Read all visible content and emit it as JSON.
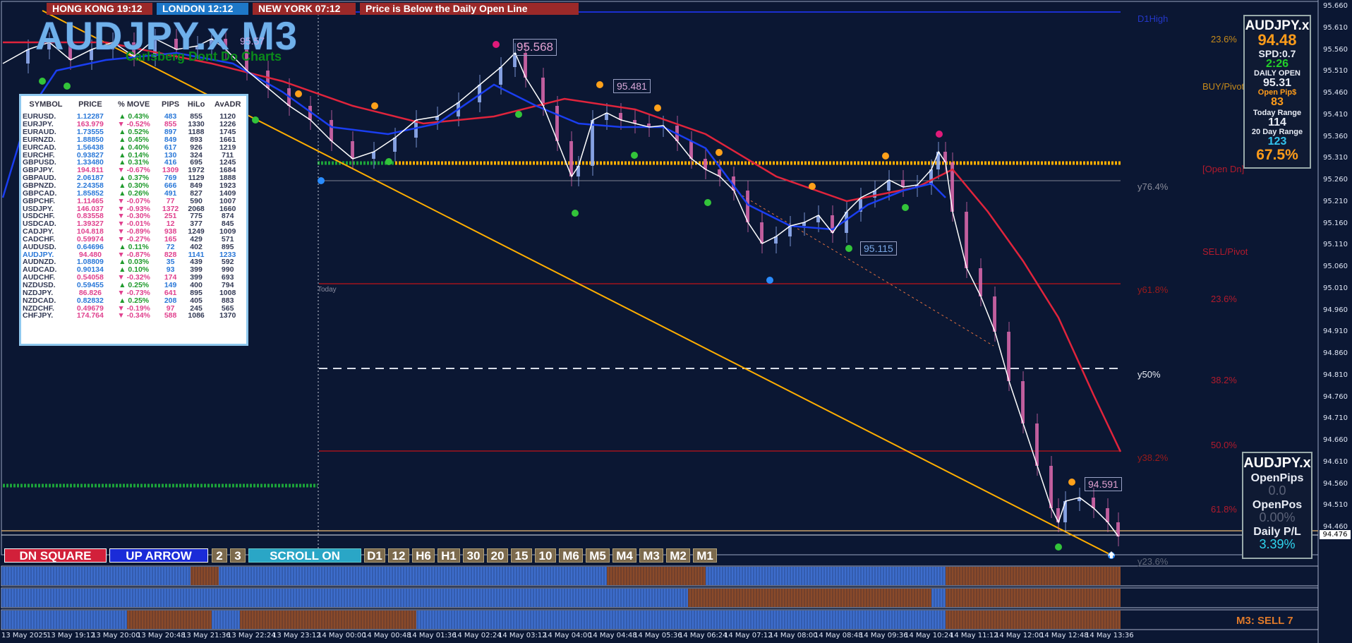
{
  "session_tabs": [
    {
      "label": "HONG KONG  19:12",
      "color": "#9b2929"
    },
    {
      "label": "LONDON  12:12",
      "color": "#1e78c8"
    },
    {
      "label": "NEW YORK  07:12",
      "color": "#9b2929"
    }
  ],
  "alert": "Price is Below the Daily Open Line",
  "title": "AUDJPY.x M3",
  "subtitle": "Carlsberg Dont Do Charts",
  "watchlist": {
    "headers": [
      "SYMBOL",
      "PRICE",
      "% MOVE",
      "PIPS",
      "HiLo",
      "AvADR"
    ],
    "rows": [
      [
        "EURUSD.",
        "1.12287",
        "up",
        "0.43%",
        "483",
        "855",
        "1120"
      ],
      [
        "EURJPY.",
        "163.979",
        "down",
        "-0.52%",
        "855",
        "1330",
        "1226"
      ],
      [
        "EURAUD.",
        "1.73555",
        "up",
        "0.52%",
        "897",
        "1188",
        "1745"
      ],
      [
        "EURNZD.",
        "1.88850",
        "up",
        "0.45%",
        "849",
        "893",
        "1661"
      ],
      [
        "EURCAD.",
        "1.56438",
        "up",
        "0.40%",
        "617",
        "926",
        "1219"
      ],
      [
        "EURCHF.",
        "0.93827",
        "up",
        "0.14%",
        "130",
        "324",
        "711"
      ],
      [
        "GBPUSD.",
        "1.33480",
        "up",
        "0.31%",
        "416",
        "695",
        "1245"
      ],
      [
        "GBPJPY.",
        "194.811",
        "down",
        "-0.67%",
        "1309",
        "1972",
        "1684"
      ],
      [
        "GBPAUD.",
        "2.06187",
        "up",
        "0.37%",
        "769",
        "1129",
        "1888"
      ],
      [
        "GBPNZD.",
        "2.24358",
        "up",
        "0.30%",
        "666",
        "849",
        "1923"
      ],
      [
        "GBPCAD.",
        "1.85852",
        "up",
        "0.26%",
        "491",
        "827",
        "1409"
      ],
      [
        "GBPCHF.",
        "1.11465",
        "down",
        "-0.07%",
        "77",
        "590",
        "1007"
      ],
      [
        "USDJPY.",
        "146.037",
        "down",
        "-0.93%",
        "1372",
        "2068",
        "1660"
      ],
      [
        "USDCHF.",
        "0.83558",
        "down",
        "-0.30%",
        "251",
        "775",
        "874"
      ],
      [
        "USDCAD.",
        "1.39327",
        "down",
        "-0.01%",
        "12",
        "377",
        "845"
      ],
      [
        "CADJPY.",
        "104.818",
        "down",
        "-0.89%",
        "938",
        "1249",
        "1009"
      ],
      [
        "CADCHF.",
        "0.59974",
        "down",
        "-0.27%",
        "165",
        "429",
        "571"
      ],
      [
        "AUDUSD.",
        "0.64696",
        "up",
        "0.11%",
        "72",
        "402",
        "895"
      ],
      [
        "AUDJPY.",
        "94.480",
        "down",
        "-0.87%",
        "828",
        "1141",
        "1233"
      ],
      [
        "AUDNZD.",
        "1.08809",
        "up",
        "0.03%",
        "35",
        "439",
        "592"
      ],
      [
        "AUDCAD.",
        "0.90134",
        "up",
        "0.10%",
        "93",
        "399",
        "990"
      ],
      [
        "AUDCHF.",
        "0.54058",
        "down",
        "-0.32%",
        "174",
        "399",
        "693"
      ],
      [
        "NZDUSD.",
        "0.59455",
        "up",
        "0.25%",
        "149",
        "400",
        "794"
      ],
      [
        "NZDJPY.",
        "86.826",
        "down",
        "-0.73%",
        "641",
        "895",
        "1008"
      ],
      [
        "NZDCAD.",
        "0.82832",
        "up",
        "0.25%",
        "208",
        "405",
        "883"
      ],
      [
        "NZDCHF.",
        "0.49679",
        "down",
        "-0.19%",
        "97",
        "245",
        "565"
      ],
      [
        "CHFJPY.",
        "174.764",
        "down",
        "-0.34%",
        "588",
        "1086",
        "1370"
      ]
    ],
    "highlight_row": 18
  },
  "info_panel": {
    "symbol": "AUDJPY.x",
    "price": "94.48",
    "spread": "SPD:0.7",
    "timer": "2:26",
    "daily_open_label": "DAILY OPEN",
    "daily_open": "95.31",
    "open_pips_label": "Open Pip$",
    "open_pips": "83",
    "today_range_label": "Today Range",
    "today_range": "114",
    "twenty_day_label": "20 Day Range",
    "twenty_day": "123",
    "pct": "67.5%"
  },
  "pl_panel": {
    "symbol": "AUDJPY.x",
    "open_pips_label": "OpenPips",
    "open_pips": "0.0",
    "open_pos_label": "OpenPos",
    "open_pos": "0.00%",
    "daily_pl_label": "Daily P/L",
    "daily_pl": "3.39%"
  },
  "price_labels": [
    {
      "text": "95.568",
      "color": "#e0a0d0"
    },
    {
      "text": "95.481",
      "color": "#d8a8d8"
    },
    {
      "text": "95.115",
      "color": "#7aa8e6"
    },
    {
      "text": "94.591",
      "color": "#e0a0d0"
    },
    {
      "text": "95.57"
    }
  ],
  "level_labels": {
    "dhigh": "D1High",
    "y764": "y76.4%",
    "y618": "y61.8%",
    "y50": "y50%",
    "y382": "y38.2%",
    "y236": "y23.6%",
    "today": "Today",
    "buy_pivot": "BUY/Pivot",
    "open_dn": "[Open Dn]",
    "sell_pivot": "SELL/Pivot",
    "fib_right": [
      "23.6%",
      "23.6%",
      "38.2%",
      "50.0%",
      "61.8%"
    ]
  },
  "y_axis": [
    "95.660",
    "95.610",
    "95.560",
    "95.510",
    "95.460",
    "95.410",
    "95.360",
    "95.310",
    "95.260",
    "95.210",
    "95.160",
    "95.110",
    "95.060",
    "95.010",
    "94.960",
    "94.910",
    "94.860",
    "94.810",
    "94.760",
    "94.710",
    "94.660",
    "94.610",
    "94.560",
    "94.510",
    "94.460"
  ],
  "current_price": "94.476",
  "x_axis": [
    "13 May 2025",
    "13 May 19:12",
    "13 May 20:00",
    "13 May 20:48",
    "13 May 21:36",
    "13 May 22:24",
    "13 May 23:12",
    "14 May 00:00",
    "14 May 00:48",
    "14 May 01:36",
    "14 May 02:24",
    "14 May 03:12",
    "14 May 04:00",
    "14 May 04:48",
    "14 May 05:36",
    "14 May 06:24",
    "14 May 07:12",
    "14 May 08:00",
    "14 May 08:48",
    "14 May 09:36",
    "14 May 10:24",
    "14 May 11:12",
    "14 May 12:00",
    "14 May 12:48",
    "14 May 13:36"
  ],
  "buttons": {
    "dn_square": "DN SQUARE",
    "up_arrow": "UP ARROW",
    "n2": "2",
    "n3": "3",
    "scroll": "SCROLL ON",
    "timeframes": [
      "D1",
      "12",
      "H6",
      "H1",
      "30",
      "20",
      "15",
      "10",
      "M6",
      "M5",
      "M4",
      "M3",
      "M2",
      "M1"
    ]
  },
  "status_text": "M3: SELL 7",
  "colors": {
    "background": "#0b1733",
    "price_line": "#ffffff",
    "fast_ma": "#1a3ef0",
    "slow_ma": "#e0243c",
    "trendline": "#ffae00",
    "bear_candle": "#e06ab0",
    "bull_candle": "#9ab8ff"
  }
}
